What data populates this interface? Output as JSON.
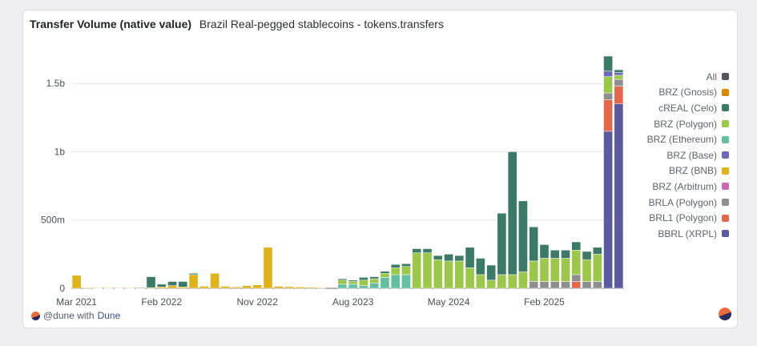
{
  "header": {
    "title": "Transfer Volume (native value)",
    "subtitle": "Brazil Real-pegged stablecoins - tokens.transfers"
  },
  "footer": {
    "prefix": "@dune with",
    "brand": "Dune"
  },
  "legend": [
    {
      "label": "All",
      "color": "#52575f"
    },
    {
      "label": "BRZ (Gnosis)",
      "color": "#d68a00"
    },
    {
      "label": "cREAL (Celo)",
      "color": "#3a7a66"
    },
    {
      "label": "BRZ (Polygon)",
      "color": "#9cc84a"
    },
    {
      "label": "BRZ (Ethereum)",
      "color": "#62c0a0"
    },
    {
      "label": "BRZ (Base)",
      "color": "#6a6ab8"
    },
    {
      "label": "BRZ (BNB)",
      "color": "#dfb21a"
    },
    {
      "label": "BRZ (Arbitrum)",
      "color": "#c86ab8"
    },
    {
      "label": "BRLA (Polygon)",
      "color": "#8e8e8e"
    },
    {
      "label": "BRL1 (Polygon)",
      "color": "#e4674a"
    },
    {
      "label": "BBRL (XRPL)",
      "color": "#5a5a9e"
    }
  ],
  "chart_data": {
    "type": "bar",
    "stacked": true,
    "title": "Transfer Volume (native value)",
    "subtitle": "Brazil Real-pegged stablecoins - tokens.transfers",
    "xlabel": "",
    "ylabel": "",
    "ylim": [
      0,
      1800000000
    ],
    "y_ticks": [
      {
        "value": 0,
        "label": "0"
      },
      {
        "value": 500000000,
        "label": "500m"
      },
      {
        "value": 1000000000,
        "label": "1b"
      },
      {
        "value": 1500000000,
        "label": "1.5b"
      }
    ],
    "x_tick_labels": [
      {
        "index": 0,
        "label": "Mar 2021"
      },
      {
        "index": 8,
        "label": "Feb 2022"
      },
      {
        "index": 17,
        "label": "Nov 2022"
      },
      {
        "index": 26,
        "label": "Aug 2023"
      },
      {
        "index": 35,
        "label": "May 2024"
      },
      {
        "index": 44,
        "label": "Feb 2025"
      }
    ],
    "grid": true,
    "legend_position": "right",
    "categories": [
      "2021-03",
      "2021-04",
      "2021-05",
      "2021-06",
      "2021-07",
      "2021-08",
      "2021-09",
      "2021-10",
      "2021-11",
      "2021-12",
      "2022-01",
      "2022-02",
      "2022-03",
      "2022-04",
      "2022-05",
      "2022-06",
      "2022-07",
      "2022-08",
      "2022-09",
      "2022-10",
      "2022-11",
      "2022-12",
      "2023-01",
      "2023-02",
      "2023-03",
      "2023-04",
      "2023-05",
      "2023-06",
      "2023-07",
      "2023-08",
      "2023-09",
      "2023-10",
      "2023-11",
      "2023-12",
      "2024-01",
      "2024-02",
      "2024-03",
      "2024-04",
      "2024-05",
      "2024-06",
      "2024-07",
      "2024-08",
      "2024-09",
      "2024-10",
      "2024-11",
      "2024-12",
      "2025-01",
      "2025-02",
      "2025-03",
      "2025-04",
      "2025-05",
      "2025-06"
    ],
    "series": [
      {
        "name": "BBRL (XRPL)",
        "color": "#5a5a9e",
        "values": [
          0,
          0,
          0,
          0,
          0,
          0,
          0,
          0,
          0,
          0,
          0,
          0,
          0,
          0,
          0,
          0,
          0,
          0,
          0,
          0,
          0,
          0,
          0,
          0,
          0,
          0,
          0,
          0,
          0,
          0,
          0,
          0,
          0,
          0,
          0,
          0,
          0,
          0,
          0,
          0,
          0,
          0,
          0,
          0,
          0,
          0,
          0,
          0,
          0,
          0,
          1150000000,
          1350000000
        ]
      },
      {
        "name": "BRL1 (Polygon)",
        "color": "#e4674a",
        "values": [
          0,
          0,
          0,
          0,
          0,
          0,
          0,
          0,
          0,
          0,
          0,
          0,
          0,
          0,
          0,
          0,
          0,
          0,
          0,
          0,
          0,
          0,
          0,
          0,
          0,
          0,
          0,
          0,
          0,
          0,
          0,
          0,
          0,
          0,
          0,
          0,
          0,
          0,
          0,
          0,
          0,
          0,
          0,
          0,
          0,
          0,
          0,
          50000000,
          0,
          0,
          230000000,
          130000000
        ]
      },
      {
        "name": "BRLA (Polygon)",
        "color": "#8e8e8e",
        "values": [
          0,
          0,
          0,
          0,
          0,
          0,
          0,
          0,
          0,
          0,
          0,
          0,
          0,
          0,
          0,
          0,
          0,
          0,
          0,
          0,
          0,
          0,
          0,
          0,
          0,
          0,
          0,
          0,
          0,
          0,
          0,
          0,
          0,
          0,
          0,
          0,
          0,
          0,
          0,
          0,
          0,
          0,
          0,
          50000000,
          50000000,
          50000000,
          50000000,
          50000000,
          50000000,
          50000000,
          50000000,
          50000000
        ]
      },
      {
        "name": "BRZ (BNB)",
        "color": "#dfb21a",
        "values": [
          95000000,
          5000000,
          3000000,
          3000000,
          3000000,
          3000000,
          3000000,
          5000000,
          10000000,
          20000000,
          10000000,
          100000000,
          15000000,
          110000000,
          15000000,
          10000000,
          20000000,
          25000000,
          300000000,
          15000000,
          12000000,
          10000000,
          8000000,
          5000000,
          0,
          0,
          0,
          0,
          0,
          0,
          0,
          0,
          0,
          0,
          0,
          0,
          0,
          0,
          0,
          0,
          0,
          0,
          0,
          0,
          0,
          0,
          0,
          0,
          0,
          0,
          0,
          0
        ]
      },
      {
        "name": "BRZ (Ethereum)",
        "color": "#62c0a0",
        "values": [
          0,
          0,
          0,
          0,
          0,
          0,
          0,
          0,
          0,
          0,
          0,
          0,
          0,
          0,
          0,
          0,
          0,
          0,
          0,
          0,
          0,
          0,
          0,
          0,
          0,
          30000000,
          30000000,
          20000000,
          40000000,
          80000000,
          100000000,
          100000000,
          0,
          0,
          0,
          0,
          0,
          0,
          0,
          0,
          0,
          0,
          0,
          0,
          0,
          0,
          0,
          0,
          0,
          0,
          0,
          0
        ]
      },
      {
        "name": "BRZ (Polygon)",
        "color": "#9cc84a",
        "values": [
          0,
          0,
          0,
          0,
          0,
          0,
          0,
          0,
          0,
          0,
          0,
          0,
          0,
          0,
          0,
          0,
          0,
          0,
          0,
          0,
          0,
          0,
          0,
          0,
          0,
          30000000,
          20000000,
          40000000,
          30000000,
          30000000,
          50000000,
          60000000,
          260000000,
          260000000,
          210000000,
          200000000,
          200000000,
          150000000,
          100000000,
          60000000,
          100000000,
          100000000,
          120000000,
          150000000,
          170000000,
          170000000,
          170000000,
          180000000,
          160000000,
          200000000,
          120000000,
          30000000
        ]
      },
      {
        "name": "BRZ (Base)",
        "color": "#6a6ab8",
        "values": [
          0,
          0,
          0,
          0,
          0,
          0,
          0,
          0,
          0,
          0,
          0,
          0,
          0,
          0,
          0,
          0,
          0,
          0,
          0,
          0,
          0,
          0,
          0,
          0,
          0,
          0,
          0,
          0,
          0,
          0,
          0,
          0,
          0,
          0,
          0,
          0,
          0,
          0,
          0,
          0,
          0,
          0,
          0,
          0,
          0,
          0,
          0,
          0,
          0,
          0,
          40000000,
          20000000
        ]
      },
      {
        "name": "cREAL (Celo)",
        "color": "#3a7a66",
        "values": [
          0,
          0,
          0,
          0,
          0,
          0,
          5000000,
          80000000,
          20000000,
          30000000,
          40000000,
          10000000,
          0,
          0,
          0,
          0,
          0,
          0,
          0,
          0,
          0,
          0,
          0,
          0,
          0,
          10000000,
          10000000,
          20000000,
          15000000,
          15000000,
          25000000,
          20000000,
          30000000,
          30000000,
          30000000,
          50000000,
          40000000,
          150000000,
          120000000,
          110000000,
          450000000,
          900000000,
          520000000,
          250000000,
          100000000,
          60000000,
          60000000,
          60000000,
          60000000,
          50000000,
          110000000,
          20000000
        ]
      },
      {
        "name": "All",
        "color": "#52575f",
        "values": [
          0,
          0,
          0,
          0,
          0,
          0,
          0,
          0,
          0,
          0,
          0,
          0,
          0,
          0,
          0,
          0,
          0,
          0,
          0,
          0,
          0,
          0,
          0,
          0,
          0,
          0,
          0,
          0,
          0,
          0,
          0,
          0,
          0,
          0,
          0,
          0,
          0,
          0,
          0,
          0,
          0,
          0,
          0,
          0,
          0,
          0,
          0,
          0,
          0,
          0,
          0,
          0
        ]
      }
    ]
  }
}
